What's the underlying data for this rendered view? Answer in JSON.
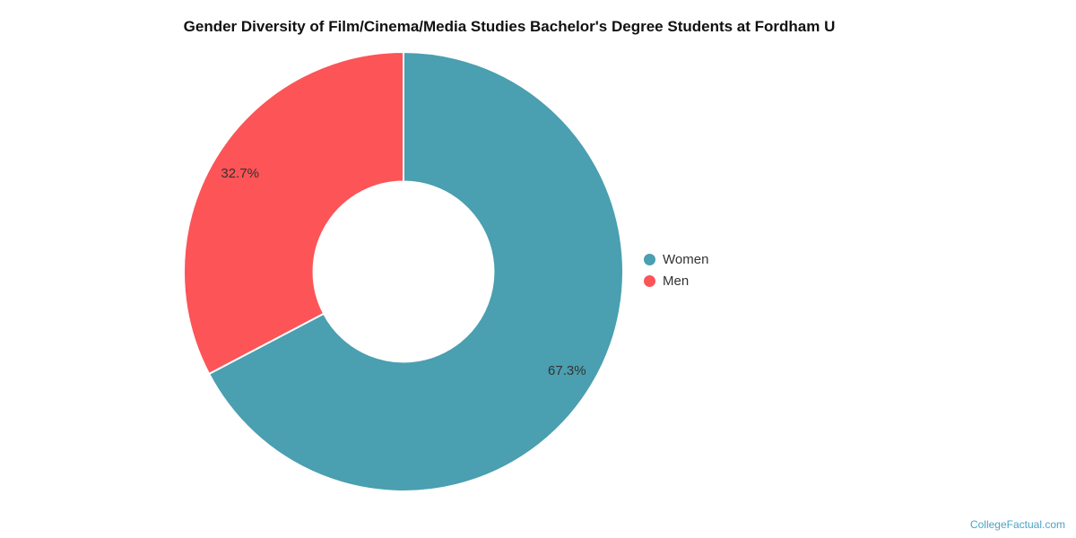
{
  "chart_data": {
    "type": "pie",
    "subtype": "donut",
    "title": "Gender Diversity of Film/Cinema/Media Studies Bachelor's Degree Students at Fordham U",
    "series": [
      {
        "name": "Women",
        "value": 67.3,
        "label": "67.3%",
        "color": "#4a9fb0"
      },
      {
        "name": "Men",
        "value": 32.7,
        "label": "32.7%",
        "color": "#fc5457"
      }
    ],
    "legend_entries": [
      "Women",
      "Men"
    ],
    "legend_position": "right",
    "start_angle_deg": 0,
    "direction": "clockwise",
    "inner_radius_ratio": 0.41,
    "label_color": "#333333",
    "slice_border_color": "#ffffff"
  },
  "watermark": {
    "text": "CollegeFactual.com",
    "color": "#4aa3c7"
  }
}
